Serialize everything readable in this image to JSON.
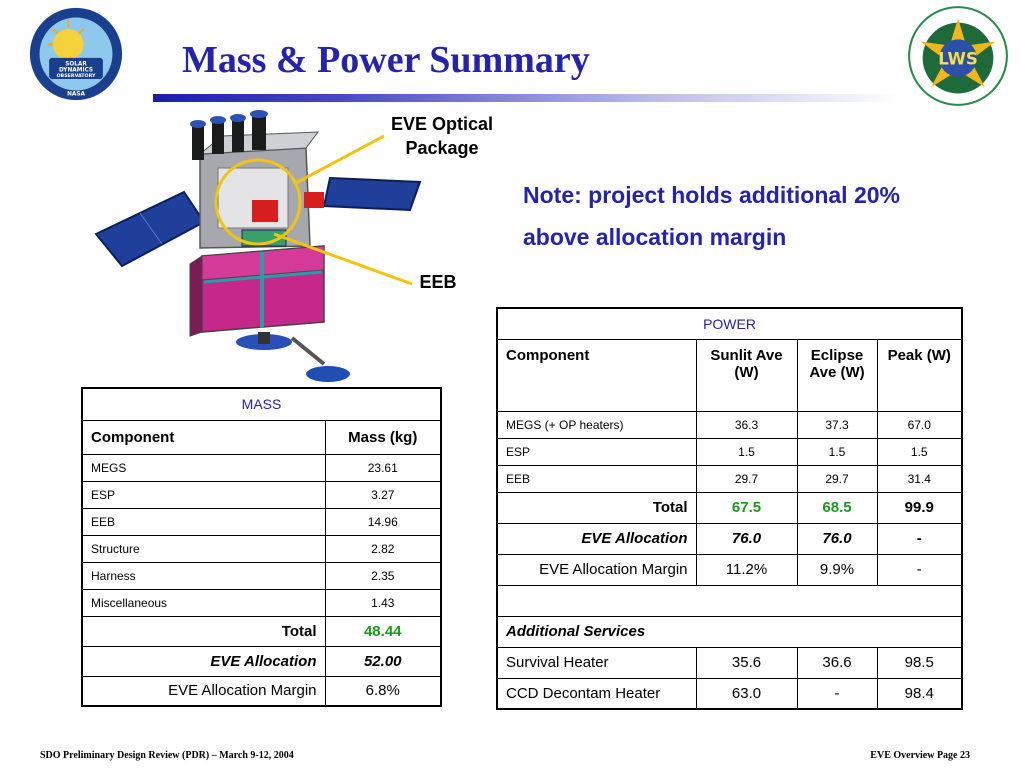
{
  "title": "Mass & Power Summary",
  "logos": {
    "left_text": "SOLAR DYNAMICS OBSERVATORY",
    "left_ring_text": "OUR EYE ON THE SUN",
    "left_bottom_text": "NASA",
    "right_text": "LWS",
    "right_ring_text": "LIVING WITH A STAR"
  },
  "callouts": {
    "optical_package": "EVE Optical\nPackage",
    "eeb": "EEB"
  },
  "note": "Note: project holds additional 20% above allocation margin",
  "mass_table": {
    "header": "MASS",
    "columns": [
      "Component",
      "Mass (kg)"
    ],
    "rows": [
      [
        "MEGS",
        "23.61"
      ],
      [
        "ESP",
        "3.27"
      ],
      [
        "EEB",
        "14.96"
      ],
      [
        "Structure",
        "2.82"
      ],
      [
        "Harness",
        "2.35"
      ],
      [
        "Miscellaneous",
        "1.43"
      ]
    ],
    "total_label": "Total",
    "total_value": "48.44",
    "allocation_label": "EVE Allocation",
    "allocation_value": "52.00",
    "margin_label": "EVE Allocation Margin",
    "margin_value": "6.8%"
  },
  "power_table": {
    "header": "POWER",
    "columns": [
      "Component",
      "Sunlit Ave (W)",
      "Eclipse Ave (W)",
      "Peak (W)"
    ],
    "rows": [
      [
        "MEGS (+ OP heaters)",
        "36.3",
        "37.3",
        "67.0"
      ],
      [
        "ESP",
        "1.5",
        "1.5",
        "1.5"
      ],
      [
        "EEB",
        "29.7",
        "29.7",
        "31.4"
      ]
    ],
    "total_label": "Total",
    "total_values": [
      "67.5",
      "68.5",
      "99.9"
    ],
    "allocation_label": "EVE Allocation",
    "allocation_values": [
      "76.0",
      "76.0",
      "-"
    ],
    "margin_label": "EVE Allocation Margin",
    "margin_values": [
      "11.2%",
      "9.9%",
      "-"
    ],
    "additional_label": "Additional Services",
    "services": [
      [
        "Survival Heater",
        "35.6",
        "36.6",
        "98.5"
      ],
      [
        "CCD Decontam Heater",
        "63.0",
        "-",
        "98.4"
      ]
    ]
  },
  "footer": {
    "left": "SDO Preliminary Design Review (PDR) – March 9-12, 2004",
    "right": "EVE Overview Page 23"
  }
}
